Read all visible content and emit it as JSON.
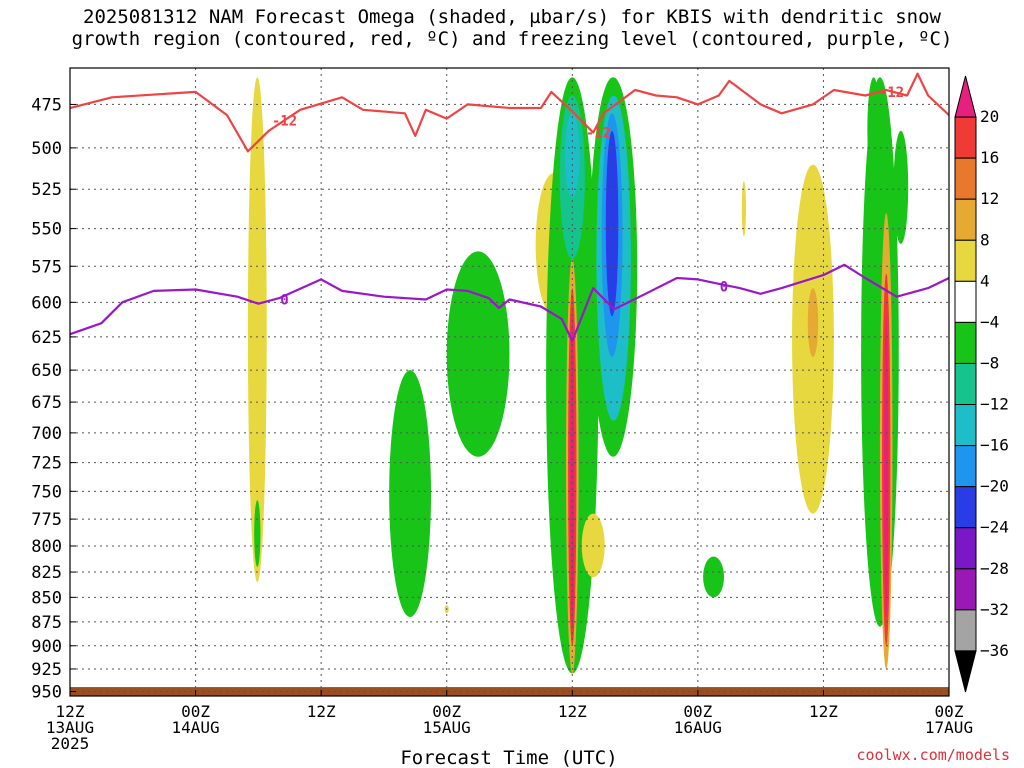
{
  "title": {
    "line1": "2025081312 NAM Forecast Omega (shaded, µbar/s) for KBIS with dendritic snow",
    "line2": "growth region (contoured, red, ºC) and freezing level (contoured, purple, ºC)"
  },
  "credit": "coolwx.com/models",
  "chart_data": {
    "type": "contour",
    "title": "2025081312 NAM Forecast Omega (shaded, µbar/s) for KBIS with dendritic snow growth region (contoured, red, ºC) and freezing level (contoured, purple, ºC)",
    "xlabel": "Forecast Time (UTC)",
    "ylabel": "",
    "x_ticks": [
      {
        "hours": 0,
        "line1": "12Z",
        "line2": "13AUG",
        "line3": "2025"
      },
      {
        "hours": 12,
        "line1": "00Z",
        "line2": "14AUG",
        "line3": ""
      },
      {
        "hours": 24,
        "line1": "12Z",
        "line2": "",
        "line3": ""
      },
      {
        "hours": 36,
        "line1": "00Z",
        "line2": "15AUG",
        "line3": ""
      },
      {
        "hours": 48,
        "line1": "12Z",
        "line2": "",
        "line3": ""
      },
      {
        "hours": 60,
        "line1": "00Z",
        "line2": "16AUG",
        "line3": ""
      },
      {
        "hours": 72,
        "line1": "12Z",
        "line2": "",
        "line3": ""
      },
      {
        "hours": 84,
        "line1": "00Z",
        "line2": "17AUG",
        "line3": ""
      }
    ],
    "xlim": [
      0,
      84
    ],
    "y_ticks": [
      475,
      500,
      525,
      550,
      575,
      600,
      625,
      650,
      675,
      700,
      725,
      750,
      775,
      800,
      825,
      850,
      875,
      900,
      925,
      950
    ],
    "ylim_hpa": [
      455,
      955
    ],
    "y_scale": "log-pressure",
    "grid": true,
    "colorbar": {
      "labels": [
        "20",
        "16",
        "12",
        "8",
        "4",
        "−4",
        "−8",
        "−12",
        "−16",
        "−20",
        "−24",
        "−28",
        "−32",
        "−36"
      ],
      "bins": [
        {
          "range": [
            20,
            99
          ],
          "color": "#e6207e"
        },
        {
          "range": [
            16,
            20
          ],
          "color": "#ef3a36"
        },
        {
          "range": [
            12,
            16
          ],
          "color": "#e8782c"
        },
        {
          "range": [
            8,
            12
          ],
          "color": "#e6aa32"
        },
        {
          "range": [
            4,
            8
          ],
          "color": "#e8d840"
        },
        {
          "range": [
            -4,
            4
          ],
          "color": "#ffffff"
        },
        {
          "range": [
            -8,
            -4
          ],
          "color": "#18c418"
        },
        {
          "range": [
            -12,
            -8
          ],
          "color": "#14c48c"
        },
        {
          "range": [
            -16,
            -12
          ],
          "color": "#1ebec8"
        },
        {
          "range": [
            -20,
            -16
          ],
          "color": "#1e96f0"
        },
        {
          "range": [
            -24,
            -20
          ],
          "color": "#2a3ce6"
        },
        {
          "range": [
            -28,
            -24
          ],
          "color": "#7a18c8"
        },
        {
          "range": [
            -32,
            -28
          ],
          "color": "#9a18b4"
        },
        {
          "range": [
            -36,
            -32
          ],
          "color": "#a4a4a4"
        },
        {
          "range": [
            -99,
            -36
          ],
          "color": "#000000"
        }
      ]
    },
    "contours": [
      {
        "name": "-12",
        "color": "#ef4444",
        "labels": [
          {
            "text": "-12",
            "hours": 20.5,
            "hpa": 484
          },
          {
            "text": "-12",
            "hours": 50.5,
            "hpa": 491
          },
          {
            "text": "-12",
            "hours": 78.5,
            "hpa": 468
          }
        ],
        "points": [
          [
            0,
            477
          ],
          [
            4,
            471
          ],
          [
            12,
            468
          ],
          [
            15,
            481
          ],
          [
            17,
            502
          ],
          [
            19,
            490
          ],
          [
            22,
            478
          ],
          [
            26,
            471
          ],
          [
            28,
            478
          ],
          [
            32,
            480
          ],
          [
            33,
            493
          ],
          [
            34,
            478
          ],
          [
            36,
            483
          ],
          [
            38,
            475
          ],
          [
            42,
            477
          ],
          [
            45,
            477
          ],
          [
            46,
            468
          ],
          [
            48,
            479
          ],
          [
            50,
            491
          ],
          [
            51,
            480
          ],
          [
            54,
            467
          ],
          [
            56,
            470
          ],
          [
            58,
            471
          ],
          [
            60,
            475
          ],
          [
            62,
            470
          ],
          [
            63,
            462
          ],
          [
            66,
            475
          ],
          [
            68,
            480
          ],
          [
            71,
            475
          ],
          [
            73,
            467
          ],
          [
            76,
            470
          ],
          [
            78,
            467
          ],
          [
            80,
            470
          ],
          [
            81,
            458
          ],
          [
            82,
            470
          ],
          [
            84,
            481
          ]
        ]
      },
      {
        "name": "0",
        "color": "#9a18c8",
        "labels": [
          {
            "text": "0",
            "hours": 20.5,
            "hpa": 598
          },
          {
            "text": "0",
            "hours": 62.5,
            "hpa": 589
          }
        ],
        "points": [
          [
            0,
            623
          ],
          [
            3,
            615
          ],
          [
            5,
            600
          ],
          [
            8,
            592
          ],
          [
            12,
            591
          ],
          [
            16,
            596
          ],
          [
            18,
            601
          ],
          [
            20,
            597
          ],
          [
            24,
            584
          ],
          [
            26,
            592
          ],
          [
            30,
            596
          ],
          [
            34,
            598
          ],
          [
            36,
            591
          ],
          [
            38,
            592
          ],
          [
            40,
            597
          ],
          [
            41,
            604
          ],
          [
            42,
            598
          ],
          [
            45,
            603
          ],
          [
            47,
            612
          ],
          [
            48,
            628
          ],
          [
            50,
            590
          ],
          [
            52,
            605
          ],
          [
            55,
            594
          ],
          [
            58,
            583
          ],
          [
            60,
            584
          ],
          [
            62,
            587
          ],
          [
            64,
            590
          ],
          [
            66,
            594
          ],
          [
            68,
            590
          ],
          [
            72,
            581
          ],
          [
            74,
            574
          ],
          [
            76,
            583
          ],
          [
            79,
            596
          ],
          [
            82,
            590
          ],
          [
            84,
            583
          ]
        ]
      }
    ],
    "series": [
      {
        "name": "omega",
        "note": "shaded field; blobs below give approximate extents in forecast hours and hPa",
        "blobs": [
          {
            "value": 5,
            "hours": [
              17.0,
              18.8
            ],
            "hpa": [
              460,
              835
            ]
          },
          {
            "value": -6,
            "hours": [
              17.6,
              18.2
            ],
            "hpa": [
              758,
              820
            ]
          },
          {
            "value": -6,
            "hours": [
              30.5,
              34.5
            ],
            "hpa": [
              650,
              870
            ]
          },
          {
            "value": 5,
            "hours": [
              35.8,
              36.2
            ],
            "hpa": [
              858,
              866
            ]
          },
          {
            "value": -6,
            "hours": [
              36.0,
              42.0
            ],
            "hpa": [
              565,
              720
            ]
          },
          {
            "value": 5,
            "hours": [
              44.5,
              48.0
            ],
            "hpa": [
              515,
              610
            ]
          },
          {
            "value": -6,
            "hours": [
              45.5,
              50.5
            ],
            "hpa": [
              460,
              930
            ]
          },
          {
            "value": -10,
            "hours": [
              46.8,
              49.2
            ],
            "hpa": [
              470,
              570
            ]
          },
          {
            "value": -14,
            "hours": [
              47.3,
              48.7
            ],
            "hpa": [
              480,
              530
            ]
          },
          {
            "value": -6,
            "hours": [
              49.6,
              54.2
            ],
            "hpa": [
              460,
              720
            ]
          },
          {
            "value": -14,
            "hours": [
              50.3,
              53.6
            ],
            "hpa": [
              470,
              690
            ]
          },
          {
            "value": -18,
            "hours": [
              50.8,
              52.8
            ],
            "hpa": [
              480,
              640
            ]
          },
          {
            "value": -22,
            "hours": [
              51.2,
              52.4
            ],
            "hpa": [
              490,
              610
            ]
          },
          {
            "value": 5,
            "hours": [
              48.9,
              51.1
            ],
            "hpa": [
              770,
              830
            ]
          },
          {
            "value": 10,
            "hours": [
              47.4,
              48.6
            ],
            "hpa": [
              570,
              930
            ]
          },
          {
            "value": 18,
            "hours": [
              47.6,
              48.4
            ],
            "hpa": [
              590,
              900
            ]
          },
          {
            "value": 24,
            "hours": [
              47.8,
              48.2
            ],
            "hpa": [
              610,
              880
            ]
          },
          {
            "value": -6,
            "hours": [
              60.5,
              62.5
            ],
            "hpa": [
              810,
              850
            ]
          },
          {
            "value": 5,
            "hours": [
              69.0,
              73.0
            ],
            "hpa": [
              510,
              770
            ]
          },
          {
            "value": 10,
            "hours": [
              70.5,
              71.5
            ],
            "hpa": [
              590,
              640
            ]
          },
          {
            "value": 5,
            "hours": [
              64.2,
              64.6
            ],
            "hpa": [
              520,
              555
            ]
          },
          {
            "value": -6,
            "hours": [
              75.6,
              79.2
            ],
            "hpa": [
              460,
              880
            ]
          },
          {
            "value": -8,
            "hours": [
              76.2,
              77.4
            ],
            "hpa": [
              460,
              520
            ]
          },
          {
            "value": -6,
            "hours": [
              78.7,
              80.1
            ],
            "hpa": [
              490,
              560
            ]
          },
          {
            "value": 10,
            "hours": [
              77.4,
              78.6
            ],
            "hpa": [
              540,
              925
            ]
          },
          {
            "value": 18,
            "hours": [
              77.6,
              78.4
            ],
            "hpa": [
              580,
              900
            ]
          },
          {
            "value": 24,
            "hours": [
              77.8,
              78.2
            ],
            "hpa": [
              610,
              870
            ]
          }
        ]
      },
      {
        "name": "terrain",
        "note": "brown surface strip",
        "hpa_top": 945,
        "color": "#9a4f22"
      }
    ]
  }
}
